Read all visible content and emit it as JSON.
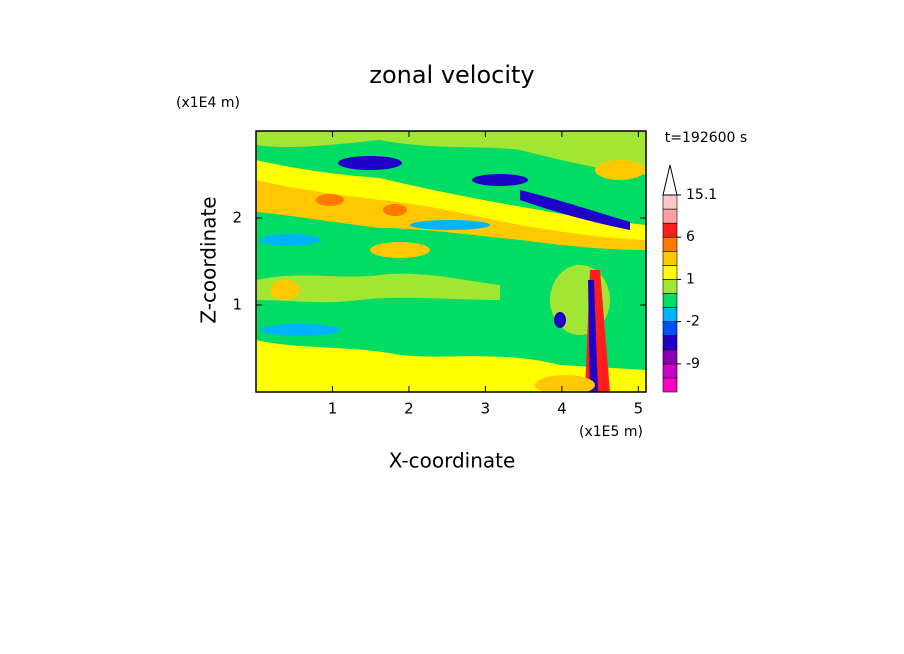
{
  "chart_data": {
    "type": "contour",
    "title": "zonal velocity",
    "x_label": "X-coordinate",
    "y_label": "Z-coordinate",
    "x_unit": "(x1E5 m)",
    "y_unit": "(x1E4 m)",
    "annotation": "t=192600 s",
    "xlim": [
      0,
      5.1
    ],
    "ylim": [
      0,
      3
    ],
    "xticks": [
      1,
      2,
      3,
      4,
      5
    ],
    "yticks": [
      1,
      2
    ],
    "colorbar": {
      "colors": [
        "#ff00c8",
        "#c800c8",
        "#8c00b4",
        "#1e00c8",
        "#0050ff",
        "#00b4ff",
        "#00dc64",
        "#a0e632",
        "#ffff00",
        "#ffc800",
        "#ff7800",
        "#ff1e1e",
        "#ffa0a0",
        "#ffc8c8"
      ],
      "boundaries": [
        null,
        -9,
        null,
        null,
        -2,
        null,
        null,
        1,
        null,
        null,
        6,
        null,
        null,
        15.1
      ]
    }
  }
}
